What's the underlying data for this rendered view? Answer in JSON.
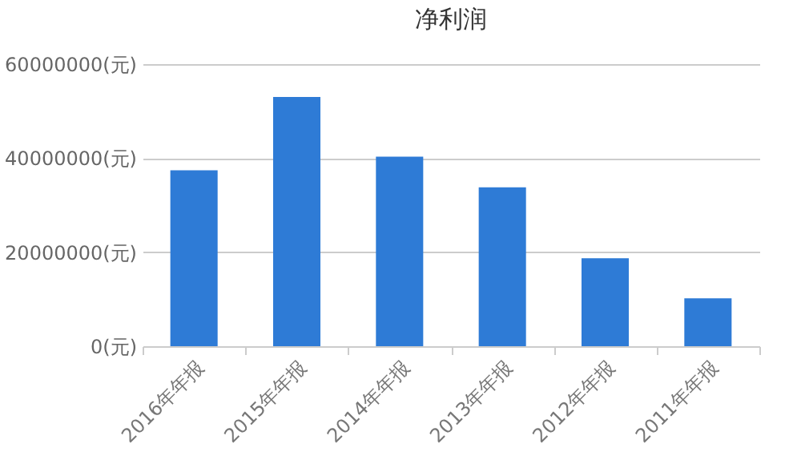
{
  "chart_data": {
    "type": "bar",
    "title": "净利润",
    "categories": [
      "2016年年报",
      "2015年年报",
      "2014年年报",
      "2013年年报",
      "2012年年报",
      "2011年年报"
    ],
    "values": [
      37400000,
      53000000,
      40300000,
      33800000,
      18700000,
      10200000
    ],
    "color": "#2e7bd6",
    "ylim": [
      0,
      60000000
    ],
    "yticks": [
      {
        "value": 0,
        "label": "0(元)"
      },
      {
        "value": 20000000,
        "label": "20000000(元)"
      },
      {
        "value": 40000000,
        "label": "40000000(元)"
      },
      {
        "value": 60000000,
        "label": "60000000(元)"
      }
    ],
    "grid": "y"
  }
}
